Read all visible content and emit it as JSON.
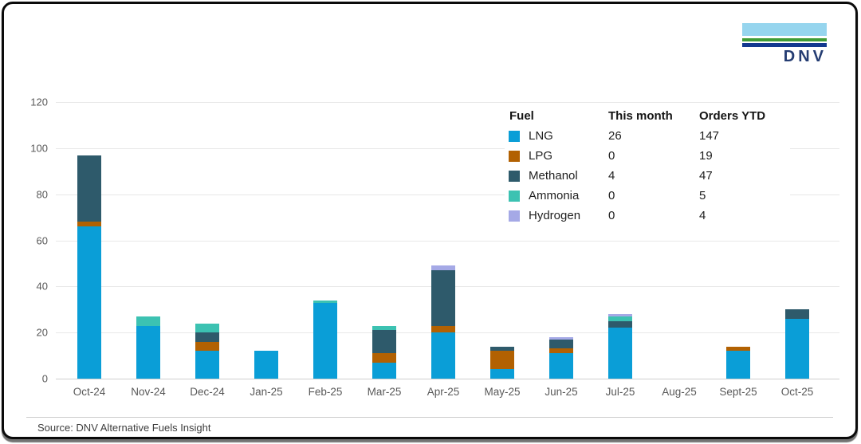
{
  "logo": {
    "text": "DNV"
  },
  "legend": {
    "headers": {
      "fuel": "Fuel",
      "this_month": "This month",
      "orders_ytd": "Orders YTD"
    },
    "rows": [
      {
        "fuel": "LNG",
        "color": "#0a9ed7",
        "this_month": "26",
        "orders_ytd": "147"
      },
      {
        "fuel": "LPG",
        "color": "#b26102",
        "this_month": "0",
        "orders_ytd": "19"
      },
      {
        "fuel": "Methanol",
        "color": "#2e5a6b",
        "this_month": "4",
        "orders_ytd": "47"
      },
      {
        "fuel": "Ammonia",
        "color": "#3cc2b2",
        "this_month": "0",
        "orders_ytd": "5"
      },
      {
        "fuel": "Hydrogen",
        "color": "#a5a9e6",
        "this_month": "0",
        "orders_ytd": "4"
      }
    ]
  },
  "chart_data": {
    "type": "bar",
    "stacked": true,
    "categories": [
      "Oct-24",
      "Nov-24",
      "Dec-24",
      "Jan-25",
      "Feb-25",
      "Mar-25",
      "Apr-25",
      "May-25",
      "Jun-25",
      "Jul-25",
      "Aug-25",
      "Sept-25",
      "Oct-25"
    ],
    "series": [
      {
        "name": "LNG",
        "color": "#0a9ed7",
        "values": [
          66,
          23,
          12,
          12,
          33,
          7,
          20,
          4,
          11,
          22,
          0,
          12,
          26
        ]
      },
      {
        "name": "LPG",
        "color": "#b26102",
        "values": [
          2,
          0,
          4,
          0,
          0,
          4,
          3,
          8,
          2,
          0,
          0,
          2,
          0
        ]
      },
      {
        "name": "Methanol",
        "color": "#2e5a6b",
        "values": [
          29,
          0,
          4,
          0,
          0,
          10,
          24,
          2,
          4,
          3,
          0,
          0,
          4
        ]
      },
      {
        "name": "Ammonia",
        "color": "#3cc2b2",
        "values": [
          0,
          4,
          4,
          0,
          1,
          2,
          0,
          0,
          0,
          2,
          0,
          0,
          0
        ]
      },
      {
        "name": "Hydrogen",
        "color": "#a5a9e6",
        "values": [
          0,
          0,
          0,
          0,
          0,
          0,
          2,
          0,
          1,
          1,
          0,
          0,
          0
        ]
      }
    ],
    "totals": [
      97,
      27,
      24,
      12,
      34,
      23,
      49,
      14,
      18,
      28,
      0,
      14,
      30
    ],
    "title": "",
    "xlabel": "",
    "ylabel": "",
    "ylim": [
      0,
      120
    ],
    "yticks": [
      0,
      20,
      40,
      60,
      80,
      100,
      120
    ],
    "grid": true,
    "legend_position": "top-right"
  },
  "source": {
    "label": "Source: DNV Alternative Fuels Insight"
  }
}
